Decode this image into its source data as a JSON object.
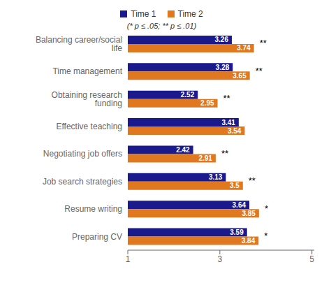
{
  "chart_data": {
    "type": "bar",
    "orientation": "horizontal",
    "subtitle": "(* p ≤ .05; ** p ≤ .01)",
    "categories": [
      "Balancing career/social life",
      "Time management",
      "Obtaining research funding",
      "Effective teaching",
      "Negotiating job offers",
      "Job search strategies",
      "Resume writing",
      "Preparing CV"
    ],
    "series": [
      {
        "name": "Time 1",
        "color": "#1a1a8c",
        "values": [
          3.26,
          3.28,
          2.52,
          3.41,
          2.42,
          3.13,
          3.64,
          3.59
        ]
      },
      {
        "name": "Time 2",
        "color": "#e07820",
        "values": [
          3.74,
          3.65,
          2.95,
          3.54,
          2.91,
          3.5,
          3.85,
          3.84
        ]
      }
    ],
    "annotations": [
      "**",
      "**",
      "**",
      null,
      "**",
      "**",
      "*",
      "*"
    ],
    "xlim": [
      1,
      5.05
    ],
    "xticks": [
      1,
      3,
      5
    ],
    "data_labels": true,
    "grid": false,
    "legend": "top"
  }
}
